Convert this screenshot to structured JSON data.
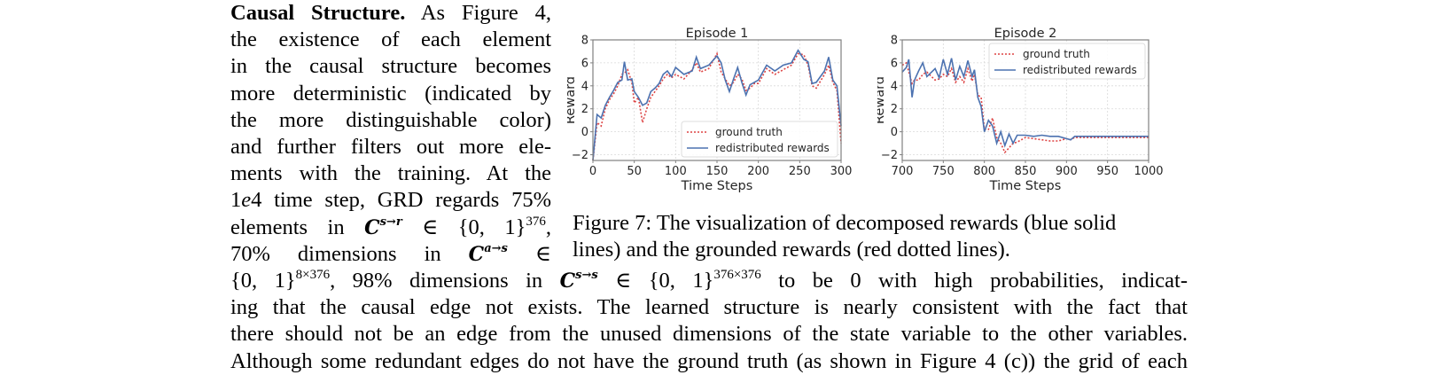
{
  "left_column": {
    "heading": "Causal Structure.",
    "lines": [
      " As Figure 4,",
      "the existence of each element",
      "in the causal structure becomes",
      "more deterministic (indicated by",
      "the more distinguishable color)",
      "and further filters out more ele-",
      "ments with the training.  At the",
      "1e4 time step, GRD regards 75%",
      "elements in C^{s→r} ∈ {0,1}^376,",
      "70% dimensions in C^{a→s} ∈"
    ],
    "line7_parts": {
      "a": "1",
      "b": "e",
      "c": "4 time step, GRD regards 75%"
    },
    "line8_parts": {
      "a": "elements in ",
      "C": "C",
      "sup": "s→r",
      "b": " ∈ {0, 1}",
      "sup2": "376",
      "c": ","
    },
    "line9_parts": {
      "a": "70%  dimensions  in  ",
      "C": "C",
      "sup": "a→s",
      "b": "  ∈"
    }
  },
  "full_width": {
    "line1_parts": {
      "a": "{0, 1}",
      "sup1": "8×376",
      "b": ", 98% dimensions in ",
      "C": "C",
      "sup2": "s→s",
      "c": " ∈ {0, 1}",
      "sup3": "376×376",
      "d": " to be 0 with high probabilities, indicat-"
    },
    "line2": "ing that the causal edge not exists.  The learned structure is nearly consistent with the fact that",
    "line3": "there should not be an edge from the unused dimensions of the state variable to the other variables.",
    "line4": "Although some redundant edges do not have the ground truth (as shown in Figure 4 (c)) the grid of each"
  },
  "figure": {
    "caption_line1": "Figure 7:  The visualization of decomposed rewards (blue solid",
    "caption_line2": "lines) and the grounded rewards (red dotted lines).",
    "colors": {
      "redistributed": "#4c72b0",
      "ground_truth": "#dd4444",
      "grid": "#d9d9d9",
      "axis": "#808080"
    }
  },
  "chart_data": [
    {
      "type": "line",
      "title": "Episode 1",
      "xlabel": "Time Steps",
      "ylabel": "Reward",
      "xlim": [
        0,
        300
      ],
      "ylim": [
        -2.5,
        8
      ],
      "xticks": [
        0,
        50,
        100,
        150,
        200,
        250,
        300
      ],
      "yticks": [
        -2,
        0,
        2,
        4,
        6,
        8
      ],
      "grid": true,
      "legend_position": "lower right",
      "legend": [
        "ground truth",
        "redistributed rewards"
      ],
      "x": [
        0,
        5,
        10,
        15,
        20,
        25,
        30,
        35,
        38,
        42,
        47,
        50,
        55,
        60,
        65,
        70,
        75,
        80,
        85,
        90,
        95,
        100,
        110,
        120,
        125,
        130,
        140,
        150,
        155,
        160,
        165,
        170,
        175,
        180,
        185,
        190,
        195,
        200,
        210,
        220,
        230,
        240,
        248,
        255,
        260,
        265,
        270,
        280,
        285,
        290,
        295,
        300
      ],
      "series": [
        {
          "name": "redistributed rewards",
          "style": "solid",
          "color": "#4c72b0",
          "values": [
            -2.5,
            1.5,
            1.2,
            2.3,
            3.0,
            3.6,
            4.3,
            4.5,
            6.1,
            4.5,
            4.6,
            3.5,
            3.0,
            2.3,
            2.5,
            3.5,
            3.8,
            4.2,
            5.0,
            5.3,
            4.8,
            5.6,
            5.0,
            5.3,
            6.5,
            5.5,
            5.8,
            6.6,
            6.0,
            4.5,
            3.5,
            4.6,
            5.6,
            4.3,
            3.2,
            4.1,
            4.3,
            4.5,
            5.8,
            5.3,
            5.8,
            6.0,
            7.1,
            6.3,
            6.1,
            4.2,
            4.3,
            5.3,
            6.5,
            4.5,
            4.0,
            0.5
          ]
        },
        {
          "name": "ground truth",
          "style": "dotted",
          "color": "#dd4444",
          "values": [
            -2.5,
            0.8,
            0.5,
            2.0,
            2.8,
            3.3,
            4.0,
            5.0,
            5.1,
            5.4,
            4.3,
            2.5,
            3.0,
            0.8,
            2.0,
            3.0,
            3.5,
            4.0,
            4.6,
            5.0,
            4.7,
            5.0,
            4.6,
            5.4,
            6.0,
            5.2,
            5.5,
            6.8,
            5.2,
            4.6,
            4.0,
            4.3,
            5.0,
            4.6,
            3.6,
            3.8,
            4.2,
            4.2,
            5.5,
            5.0,
            5.4,
            5.8,
            6.8,
            6.7,
            5.8,
            4.0,
            3.8,
            5.0,
            5.8,
            4.3,
            3.6,
            -1.0
          ]
        }
      ]
    },
    {
      "type": "line",
      "title": "Episode 2",
      "xlabel": "Time Steps",
      "ylabel": "Reward",
      "xlim": [
        700,
        1000
      ],
      "ylim": [
        -2.5,
        8
      ],
      "xticks": [
        700,
        750,
        800,
        850,
        900,
        950,
        1000
      ],
      "yticks": [
        -2,
        0,
        2,
        4,
        6,
        8
      ],
      "grid": true,
      "legend_position": "upper right",
      "legend": [
        "ground truth",
        "redistributed rewards"
      ],
      "x": [
        700,
        705,
        708,
        712,
        715,
        720,
        725,
        730,
        740,
        745,
        750,
        755,
        760,
        765,
        770,
        775,
        780,
        785,
        788,
        792,
        796,
        800,
        805,
        810,
        815,
        820,
        825,
        830,
        835,
        840,
        850,
        860,
        870,
        880,
        890,
        900,
        905,
        910,
        915,
        950,
        1000
      ],
      "series": [
        {
          "name": "redistributed rewards",
          "style": "solid",
          "color": "#4c72b0",
          "values": [
            5.2,
            5.6,
            6.3,
            3.0,
            4.5,
            5.3,
            6.0,
            4.8,
            5.5,
            4.7,
            6.3,
            5.0,
            6.4,
            4.5,
            5.7,
            4.8,
            6.2,
            4.8,
            5.4,
            3.0,
            2.2,
            0.0,
            1.0,
            0.5,
            -1.0,
            0.0,
            -1.2,
            -0.2,
            -1.0,
            -0.3,
            -0.3,
            -0.4,
            -0.3,
            -0.4,
            -0.4,
            -0.6,
            -0.7,
            -0.4,
            -0.4,
            -0.4,
            -0.4
          ]
        },
        {
          "name": "ground truth",
          "style": "dotted",
          "color": "#dd4444",
          "values": [
            5.8,
            6.0,
            5.2,
            4.2,
            4.5,
            4.5,
            5.0,
            5.2,
            4.5,
            4.6,
            5.0,
            4.8,
            5.5,
            4.3,
            4.8,
            4.3,
            5.5,
            4.4,
            5.0,
            3.2,
            3.0,
            0.2,
            0.2,
            1.2,
            -0.5,
            -1.0,
            -1.8,
            -1.4,
            -1.0,
            -0.9,
            -0.5,
            -0.6,
            -0.7,
            -0.8,
            -0.8,
            -0.6,
            -0.7,
            -0.5,
            -0.5,
            -0.5,
            -0.5
          ]
        }
      ]
    }
  ]
}
